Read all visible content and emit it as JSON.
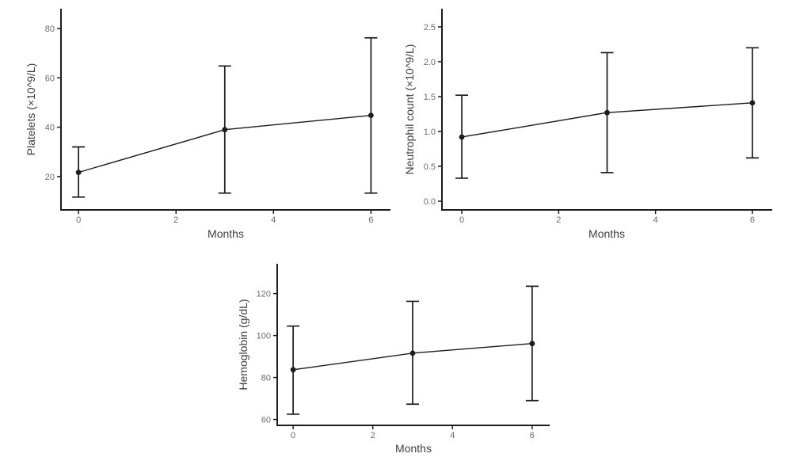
{
  "page": {
    "background": "#ffffff",
    "description": "Three error-bar line charts of blood counts over months"
  },
  "colors": {
    "axis": "#1c1c1c",
    "series": "#1c1c1c",
    "tick_label": "#6b6b6b",
    "axis_title": "#3a3f4a"
  },
  "chart_data": [
    {
      "type": "line",
      "name": "platelets",
      "title": "",
      "xlabel": "Months",
      "ylabel": "Platelets (×10^9/L)",
      "x": [
        0,
        3,
        6
      ],
      "series": [
        {
          "name": "mean",
          "values": [
            21.7,
            39.0,
            44.8
          ]
        }
      ],
      "error_low": [
        11.7,
        13.3,
        13.3
      ],
      "error_high": [
        32.0,
        64.8,
        76.2
      ],
      "x_ticks": {
        "values": [
          0,
          2,
          4,
          6
        ],
        "labels": [
          "0",
          "2",
          "4",
          "6"
        ]
      },
      "y_ticks": {
        "values": [
          20,
          40,
          60,
          80
        ],
        "labels": [
          "20",
          "40",
          "60",
          "80"
        ]
      },
      "xlim": [
        -0.36,
        6.4
      ],
      "ylim": [
        6.5,
        88
      ],
      "grid": false,
      "legend": "none",
      "marker": "point-with-error-bars"
    },
    {
      "type": "line",
      "name": "neutrophil",
      "title": "",
      "xlabel": "Months",
      "ylabel": "Neutrophil count (×10^9/L)",
      "x": [
        0,
        3,
        6
      ],
      "series": [
        {
          "name": "mean",
          "values": [
            0.92,
            1.27,
            1.41
          ]
        }
      ],
      "error_low": [
        0.33,
        0.41,
        0.62
      ],
      "error_high": [
        1.52,
        2.13,
        2.2
      ],
      "x_ticks": {
        "values": [
          0,
          2,
          4,
          6
        ],
        "labels": [
          "0",
          "2",
          "4",
          "6"
        ]
      },
      "y_ticks": {
        "values": [
          0,
          0.5,
          1.0,
          1.5,
          2.0,
          2.5
        ],
        "labels": [
          "0.0",
          "0.5",
          "1.0",
          "1.5",
          "2.0",
          "2.5"
        ]
      },
      "xlim": [
        -0.41,
        6.41
      ],
      "ylim": [
        -0.125,
        2.76
      ],
      "grid": false,
      "legend": "none",
      "marker": "point-with-error-bars"
    },
    {
      "type": "line",
      "name": "hemoglobin",
      "title": "",
      "xlabel": "Months",
      "ylabel": "Hemoglobin (g/dL)",
      "x": [
        0,
        3,
        6
      ],
      "series": [
        {
          "name": "mean",
          "values": [
            83.7,
            91.6,
            96.2
          ]
        }
      ],
      "error_low": [
        62.5,
        67.3,
        69.0
      ],
      "error_high": [
        104.5,
        116.3,
        123.5
      ],
      "x_ticks": {
        "values": [
          0,
          2,
          4,
          6
        ],
        "labels": [
          "0",
          "2",
          "4",
          "6"
        ]
      },
      "y_ticks": {
        "values": [
          60,
          80,
          100,
          120
        ],
        "labels": [
          "60",
          "80",
          "100",
          "120"
        ]
      },
      "xlim": [
        -0.4,
        6.44
      ],
      "ylim": [
        57.2,
        134.2
      ],
      "grid": false,
      "legend": "none",
      "marker": "point-with-error-bars"
    }
  ]
}
